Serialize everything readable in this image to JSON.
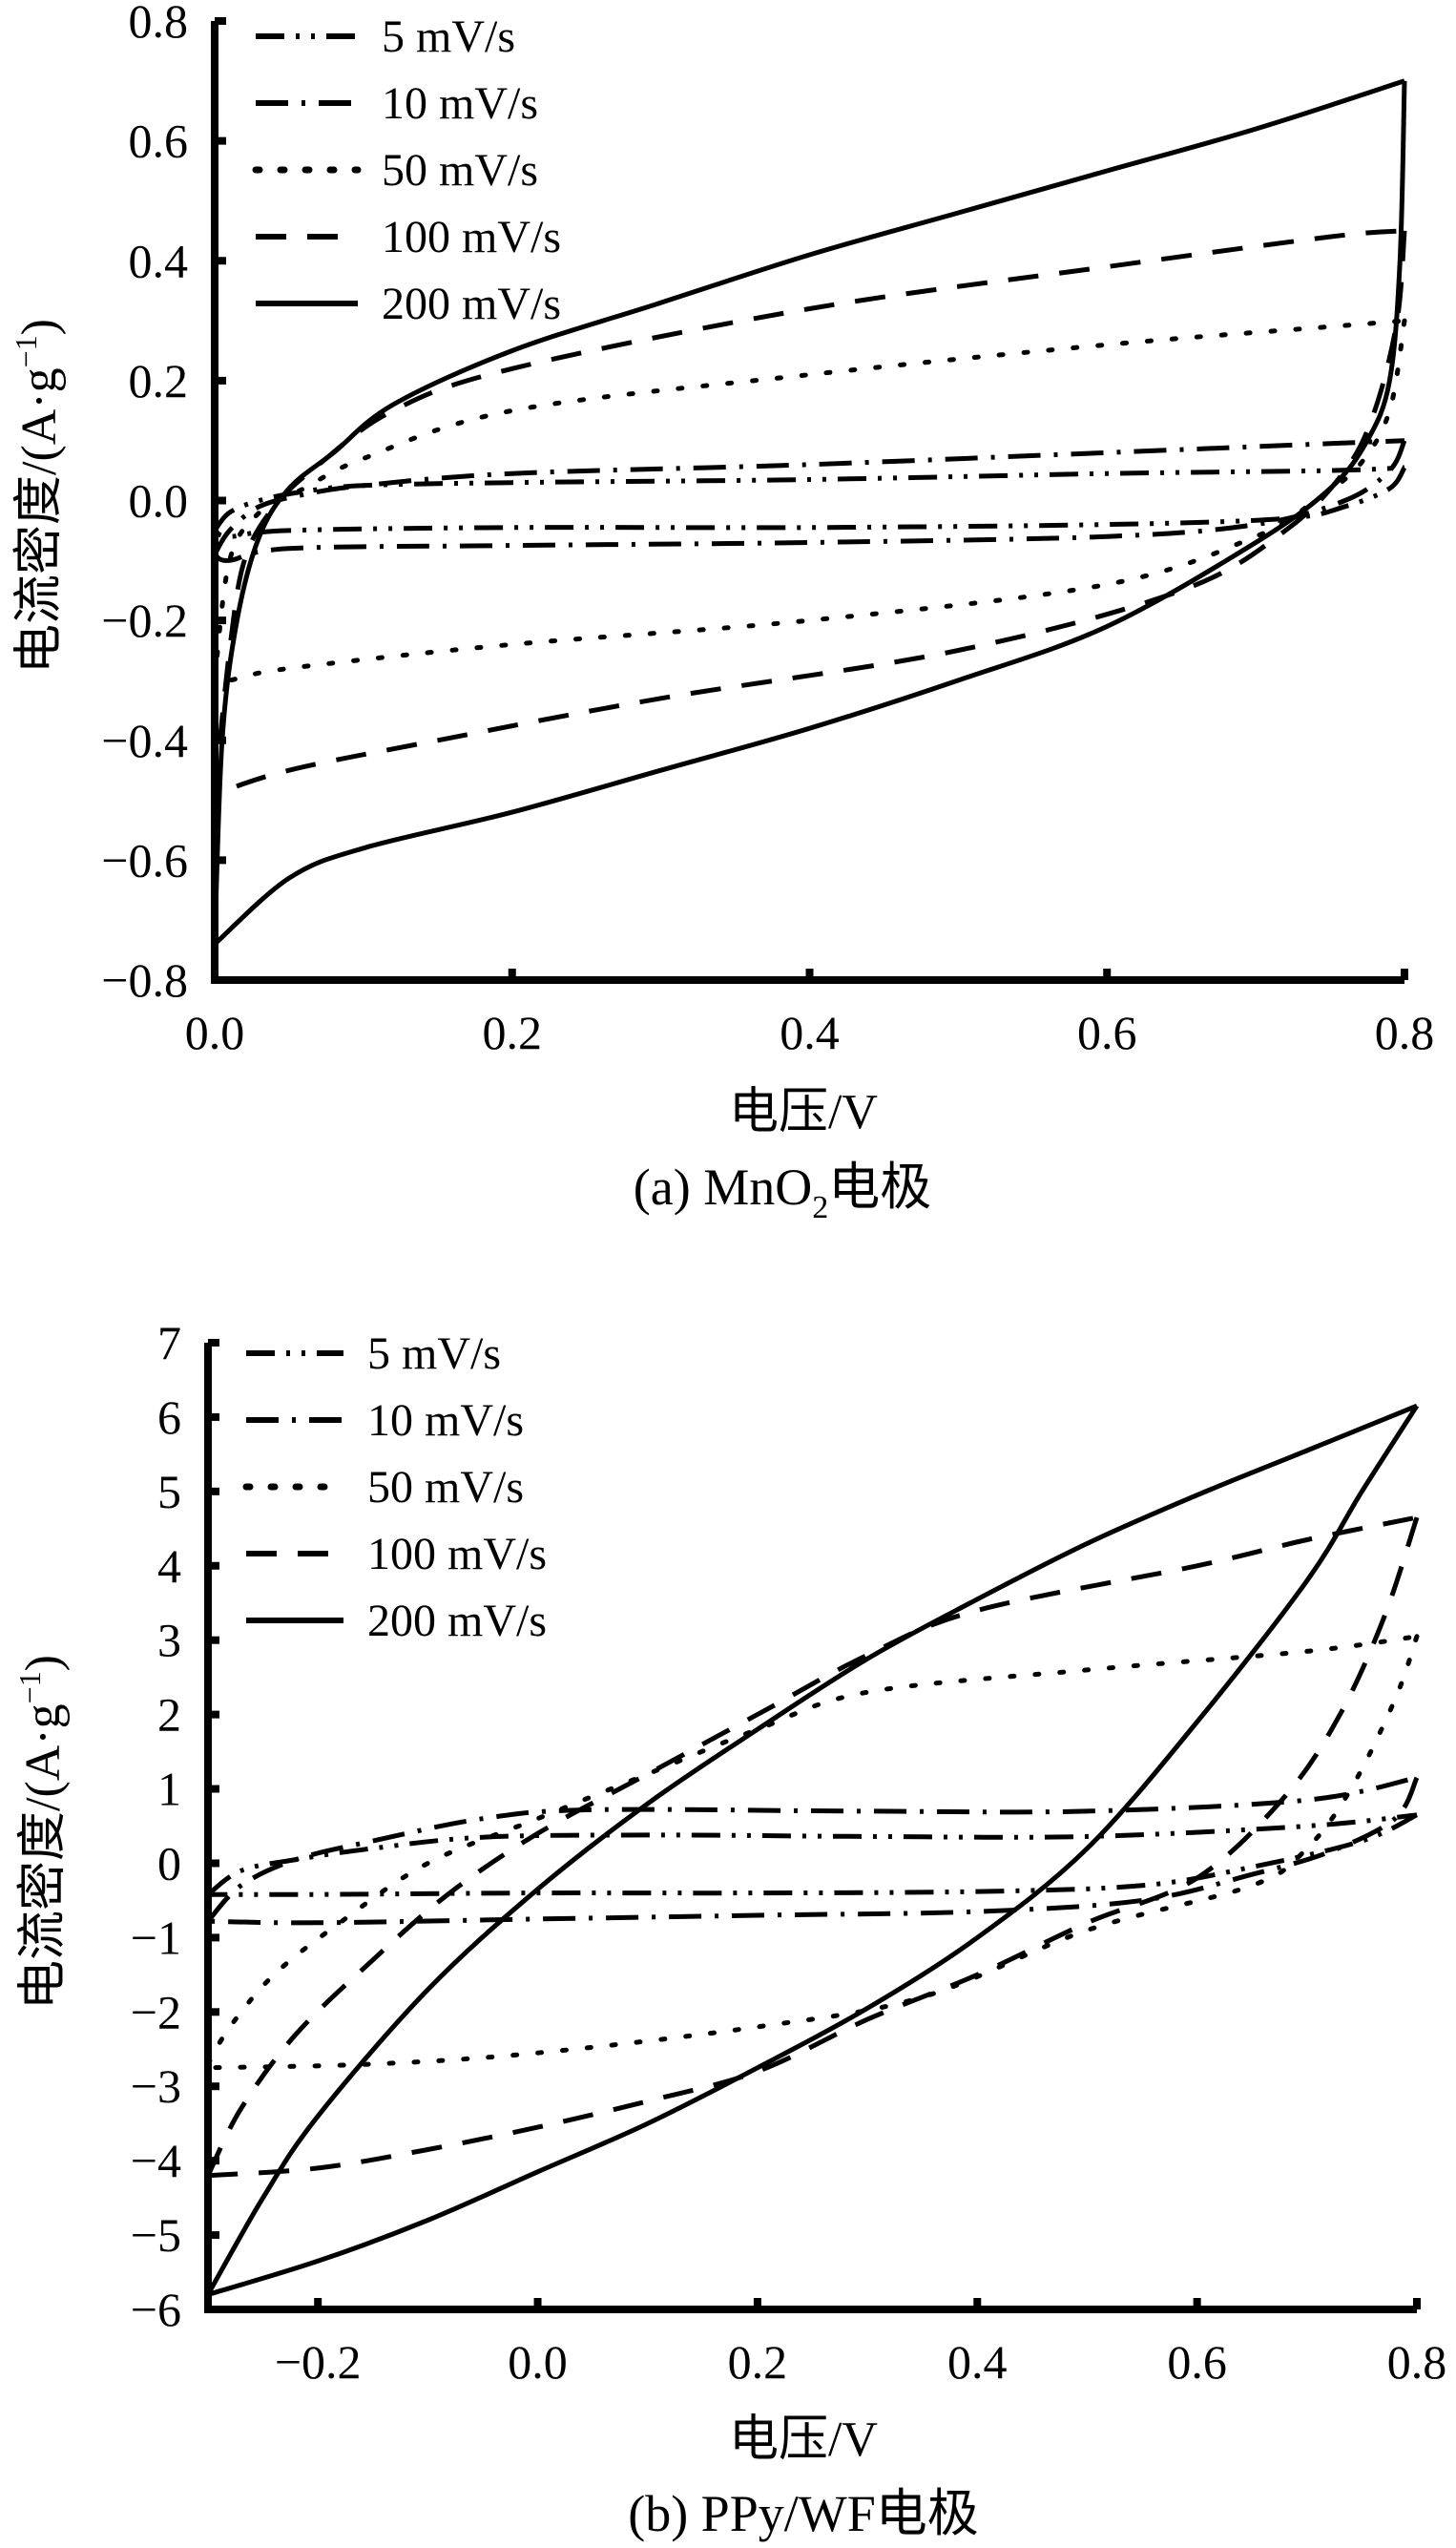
{
  "chart_data": [
    {
      "panel": "a",
      "type": "line",
      "caption_prefix": "(a) MnO",
      "caption_subscript": "2",
      "caption_suffix": "电极",
      "xlabel": "电压/V",
      "ylabel_main": "电流密度/(A·g",
      "ylabel_sup": "−1",
      "ylabel_close": ")",
      "xlim": [
        0.0,
        0.8
      ],
      "ylim": [
        -0.8,
        0.8
      ],
      "xticks": [
        "0.0",
        "0.2",
        "0.4",
        "0.6",
        "0.8"
      ],
      "xtick_values": [
        0.0,
        0.2,
        0.4,
        0.6,
        0.8
      ],
      "yticks": [
        "0.8",
        "0.6",
        "0.4",
        "0.2",
        "0.0",
        "−0.2",
        "−0.4",
        "−0.6",
        "−0.8"
      ],
      "ytick_values": [
        0.8,
        0.6,
        0.4,
        0.2,
        0.0,
        -0.2,
        -0.4,
        -0.6,
        -0.8
      ],
      "grid": false,
      "legend_position": "top-left",
      "series": [
        {
          "name": "5 mV/s",
          "style": "dash-dot-dot",
          "anodic": [
            [
              0.0,
              -0.05
            ],
            [
              0.01,
              -0.02
            ],
            [
              0.03,
              0.0
            ],
            [
              0.06,
              0.015
            ],
            [
              0.1,
              0.025
            ],
            [
              0.2,
              0.03
            ],
            [
              0.4,
              0.035
            ],
            [
              0.6,
              0.045
            ],
            [
              0.75,
              0.05
            ],
            [
              0.8,
              0.055
            ]
          ],
          "cathodic": [
            [
              0.8,
              0.055
            ],
            [
              0.79,
              0.02
            ],
            [
              0.76,
              -0.01
            ],
            [
              0.72,
              -0.03
            ],
            [
              0.6,
              -0.04
            ],
            [
              0.4,
              -0.045
            ],
            [
              0.2,
              -0.045
            ],
            [
              0.05,
              -0.05
            ],
            [
              0.01,
              -0.06
            ],
            [
              0.0,
              -0.05
            ]
          ]
        },
        {
          "name": "10 mV/s",
          "style": "dash-dot",
          "anodic": [
            [
              0.0,
              -0.09
            ],
            [
              0.01,
              -0.05
            ],
            [
              0.03,
              -0.01
            ],
            [
              0.06,
              0.01
            ],
            [
              0.1,
              0.025
            ],
            [
              0.2,
              0.045
            ],
            [
              0.4,
              0.06
            ],
            [
              0.6,
              0.08
            ],
            [
              0.75,
              0.095
            ],
            [
              0.8,
              0.1
            ]
          ],
          "cathodic": [
            [
              0.8,
              0.1
            ],
            [
              0.79,
              0.05
            ],
            [
              0.76,
              0.0
            ],
            [
              0.7,
              -0.04
            ],
            [
              0.6,
              -0.06
            ],
            [
              0.4,
              -0.07
            ],
            [
              0.2,
              -0.075
            ],
            [
              0.05,
              -0.08
            ],
            [
              0.01,
              -0.1
            ],
            [
              0.0,
              -0.09
            ]
          ]
        },
        {
          "name": "50 mV/s",
          "style": "dot",
          "anodic": [
            [
              0.0,
              -0.3
            ],
            [
              0.01,
              -0.1
            ],
            [
              0.03,
              -0.02
            ],
            [
              0.06,
              0.02
            ],
            [
              0.1,
              0.07
            ],
            [
              0.2,
              0.15
            ],
            [
              0.4,
              0.21
            ],
            [
              0.6,
              0.26
            ],
            [
              0.75,
              0.29
            ],
            [
              0.8,
              0.3
            ]
          ],
          "cathodic": [
            [
              0.8,
              0.3
            ],
            [
              0.79,
              0.15
            ],
            [
              0.77,
              0.06
            ],
            [
              0.74,
              0.0
            ],
            [
              0.7,
              -0.06
            ],
            [
              0.6,
              -0.14
            ],
            [
              0.4,
              -0.2
            ],
            [
              0.2,
              -0.24
            ],
            [
              0.05,
              -0.28
            ],
            [
              0.01,
              -0.3
            ],
            [
              0.0,
              -0.3
            ]
          ]
        },
        {
          "name": "100 mV/s",
          "style": "dash",
          "anodic": [
            [
              0.0,
              -0.49
            ],
            [
              0.01,
              -0.25
            ],
            [
              0.02,
              -0.1
            ],
            [
              0.04,
              -0.01
            ],
            [
              0.07,
              0.06
            ],
            [
              0.12,
              0.15
            ],
            [
              0.2,
              0.22
            ],
            [
              0.4,
              0.32
            ],
            [
              0.6,
              0.39
            ],
            [
              0.75,
              0.44
            ],
            [
              0.8,
              0.45
            ]
          ],
          "cathodic": [
            [
              0.8,
              0.45
            ],
            [
              0.795,
              0.3
            ],
            [
              0.78,
              0.15
            ],
            [
              0.76,
              0.05
            ],
            [
              0.72,
              -0.05
            ],
            [
              0.65,
              -0.15
            ],
            [
              0.5,
              -0.25
            ],
            [
              0.3,
              -0.33
            ],
            [
              0.15,
              -0.4
            ],
            [
              0.05,
              -0.45
            ],
            [
              0.0,
              -0.49
            ]
          ]
        },
        {
          "name": "200 mV/s",
          "style": "solid",
          "anodic": [
            [
              0.0,
              -0.74
            ],
            [
              0.005,
              -0.4
            ],
            [
              0.015,
              -0.2
            ],
            [
              0.03,
              -0.06
            ],
            [
              0.05,
              0.02
            ],
            [
              0.08,
              0.08
            ],
            [
              0.12,
              0.16
            ],
            [
              0.2,
              0.25
            ],
            [
              0.3,
              0.33
            ],
            [
              0.4,
              0.41
            ],
            [
              0.5,
              0.48
            ],
            [
              0.6,
              0.55
            ],
            [
              0.7,
              0.62
            ],
            [
              0.8,
              0.7
            ]
          ],
          "cathodic": [
            [
              0.8,
              0.7
            ],
            [
              0.797,
              0.4
            ],
            [
              0.79,
              0.2
            ],
            [
              0.775,
              0.1
            ],
            [
              0.75,
              0.02
            ],
            [
              0.7,
              -0.07
            ],
            [
              0.6,
              -0.21
            ],
            [
              0.5,
              -0.3
            ],
            [
              0.4,
              -0.38
            ],
            [
              0.3,
              -0.45
            ],
            [
              0.2,
              -0.52
            ],
            [
              0.1,
              -0.58
            ],
            [
              0.05,
              -0.63
            ],
            [
              0.0,
              -0.74
            ]
          ]
        }
      ]
    },
    {
      "panel": "b",
      "type": "line",
      "caption_prefix": "(b) PPy/WF",
      "caption_subscript": "",
      "caption_suffix": "电极",
      "xlabel": "电压/V",
      "ylabel_main": "电流密度/(A·g",
      "ylabel_sup": "−1",
      "ylabel_close": ")",
      "xlim": [
        -0.3,
        0.8
      ],
      "ylim": [
        -6,
        7
      ],
      "xticks": [
        "−0.2",
        "0.0",
        "0.2",
        "0.4",
        "0.6",
        "0.8"
      ],
      "xtick_values": [
        -0.2,
        0.0,
        0.2,
        0.4,
        0.6,
        0.8
      ],
      "yticks": [
        "7",
        "6",
        "5",
        "4",
        "3",
        "2",
        "1",
        "0",
        "−1",
        "−2",
        "−3",
        "−4",
        "−5",
        "−6"
      ],
      "ytick_values": [
        7,
        6,
        5,
        4,
        3,
        2,
        1,
        0,
        -1,
        -2,
        -3,
        -4,
        -5,
        -6
      ],
      "grid": false,
      "legend_position": "top-left",
      "series": [
        {
          "name": "5 mV/s",
          "style": "dash-dot-dot",
          "anodic": [
            [
              -0.3,
              -0.42
            ],
            [
              -0.27,
              -0.1
            ],
            [
              -0.22,
              0.05
            ],
            [
              -0.15,
              0.2
            ],
            [
              -0.05,
              0.35
            ],
            [
              0.1,
              0.38
            ],
            [
              0.3,
              0.36
            ],
            [
              0.5,
              0.36
            ],
            [
              0.7,
              0.5
            ],
            [
              0.8,
              0.65
            ]
          ],
          "cathodic": [
            [
              0.8,
              0.65
            ],
            [
              0.75,
              0.3
            ],
            [
              0.65,
              -0.05
            ],
            [
              0.55,
              -0.3
            ],
            [
              0.4,
              -0.38
            ],
            [
              0.2,
              -0.4
            ],
            [
              0.0,
              -0.4
            ],
            [
              -0.2,
              -0.42
            ],
            [
              -0.3,
              -0.42
            ]
          ]
        },
        {
          "name": "10 mV/s",
          "style": "dash-dot",
          "anodic": [
            [
              -0.3,
              -0.78
            ],
            [
              -0.27,
              -0.3
            ],
            [
              -0.22,
              0.05
            ],
            [
              -0.15,
              0.3
            ],
            [
              -0.05,
              0.6
            ],
            [
              0.05,
              0.72
            ],
            [
              0.3,
              0.7
            ],
            [
              0.5,
              0.7
            ],
            [
              0.7,
              0.85
            ],
            [
              0.8,
              1.15
            ]
          ],
          "cathodic": [
            [
              0.8,
              1.15
            ],
            [
              0.78,
              0.6
            ],
            [
              0.72,
              0.15
            ],
            [
              0.65,
              -0.15
            ],
            [
              0.55,
              -0.5
            ],
            [
              0.4,
              -0.65
            ],
            [
              0.2,
              -0.7
            ],
            [
              0.0,
              -0.75
            ],
            [
              -0.2,
              -0.8
            ],
            [
              -0.3,
              -0.78
            ]
          ]
        },
        {
          "name": "50 mV/s",
          "style": "dot",
          "anodic": [
            [
              -0.3,
              -2.7
            ],
            [
              -0.28,
              -2.2
            ],
            [
              -0.24,
              -1.5
            ],
            [
              -0.18,
              -0.8
            ],
            [
              -0.1,
              0.0
            ],
            [
              0.0,
              0.6
            ],
            [
              0.1,
              1.2
            ],
            [
              0.2,
              1.8
            ],
            [
              0.3,
              2.3
            ],
            [
              0.5,
              2.6
            ],
            [
              0.7,
              2.85
            ],
            [
              0.8,
              3.05
            ]
          ],
          "cathodic": [
            [
              0.8,
              3.05
            ],
            [
              0.78,
              2.2
            ],
            [
              0.74,
              1.0
            ],
            [
              0.7,
              0.2
            ],
            [
              0.65,
              -0.3
            ],
            [
              0.5,
              -0.9
            ],
            [
              0.35,
              -1.8
            ],
            [
              0.2,
              -2.2
            ],
            [
              0.0,
              -2.55
            ],
            [
              -0.15,
              -2.7
            ],
            [
              -0.3,
              -2.75
            ]
          ]
        },
        {
          "name": "100 mV/s",
          "style": "dash",
          "anodic": [
            [
              -0.3,
              -4.2
            ],
            [
              -0.27,
              -3.3
            ],
            [
              -0.22,
              -2.3
            ],
            [
              -0.15,
              -1.3
            ],
            [
              -0.08,
              -0.4
            ],
            [
              0.0,
              0.4
            ],
            [
              0.1,
              1.2
            ],
            [
              0.2,
              2.0
            ],
            [
              0.3,
              2.8
            ],
            [
              0.4,
              3.4
            ],
            [
              0.6,
              4.0
            ],
            [
              0.7,
              4.35
            ],
            [
              0.8,
              4.65
            ]
          ],
          "cathodic": [
            [
              0.8,
              4.65
            ],
            [
              0.77,
              3.3
            ],
            [
              0.73,
              2.0
            ],
            [
              0.68,
              0.9
            ],
            [
              0.6,
              -0.2
            ],
            [
              0.5,
              -0.8
            ],
            [
              0.4,
              -1.5
            ],
            [
              0.3,
              -2.1
            ],
            [
              0.2,
              -2.8
            ],
            [
              0.1,
              -3.2
            ],
            [
              0.0,
              -3.55
            ],
            [
              -0.1,
              -3.85
            ],
            [
              -0.2,
              -4.1
            ],
            [
              -0.3,
              -4.2
            ]
          ]
        },
        {
          "name": "200 mV/s",
          "style": "solid",
          "anodic": [
            [
              -0.3,
              -5.8
            ],
            [
              -0.25,
              -4.5
            ],
            [
              -0.2,
              -3.4
            ],
            [
              -0.1,
              -1.7
            ],
            [
              0.0,
              -0.35
            ],
            [
              0.1,
              0.8
            ],
            [
              0.2,
              1.8
            ],
            [
              0.3,
              2.75
            ],
            [
              0.4,
              3.55
            ],
            [
              0.5,
              4.3
            ],
            [
              0.6,
              4.95
            ],
            [
              0.7,
              5.55
            ],
            [
              0.8,
              6.15
            ]
          ],
          "cathodic": [
            [
              0.8,
              6.15
            ],
            [
              0.75,
              5.0
            ],
            [
              0.7,
              3.8
            ],
            [
              0.6,
              1.9
            ],
            [
              0.5,
              0.2
            ],
            [
              0.4,
              -1.0
            ],
            [
              0.3,
              -1.95
            ],
            [
              0.2,
              -2.75
            ],
            [
              0.1,
              -3.5
            ],
            [
              0.0,
              -4.15
            ],
            [
              -0.1,
              -4.8
            ],
            [
              -0.2,
              -5.35
            ],
            [
              -0.3,
              -5.8
            ]
          ]
        }
      ]
    }
  ],
  "dash_styles": {
    "solid": "",
    "dash": "32 22",
    "dot": "4 22",
    "dash-dot": "34 14 4 14",
    "dash-dot-dot": "30 12 4 12 4 12"
  }
}
